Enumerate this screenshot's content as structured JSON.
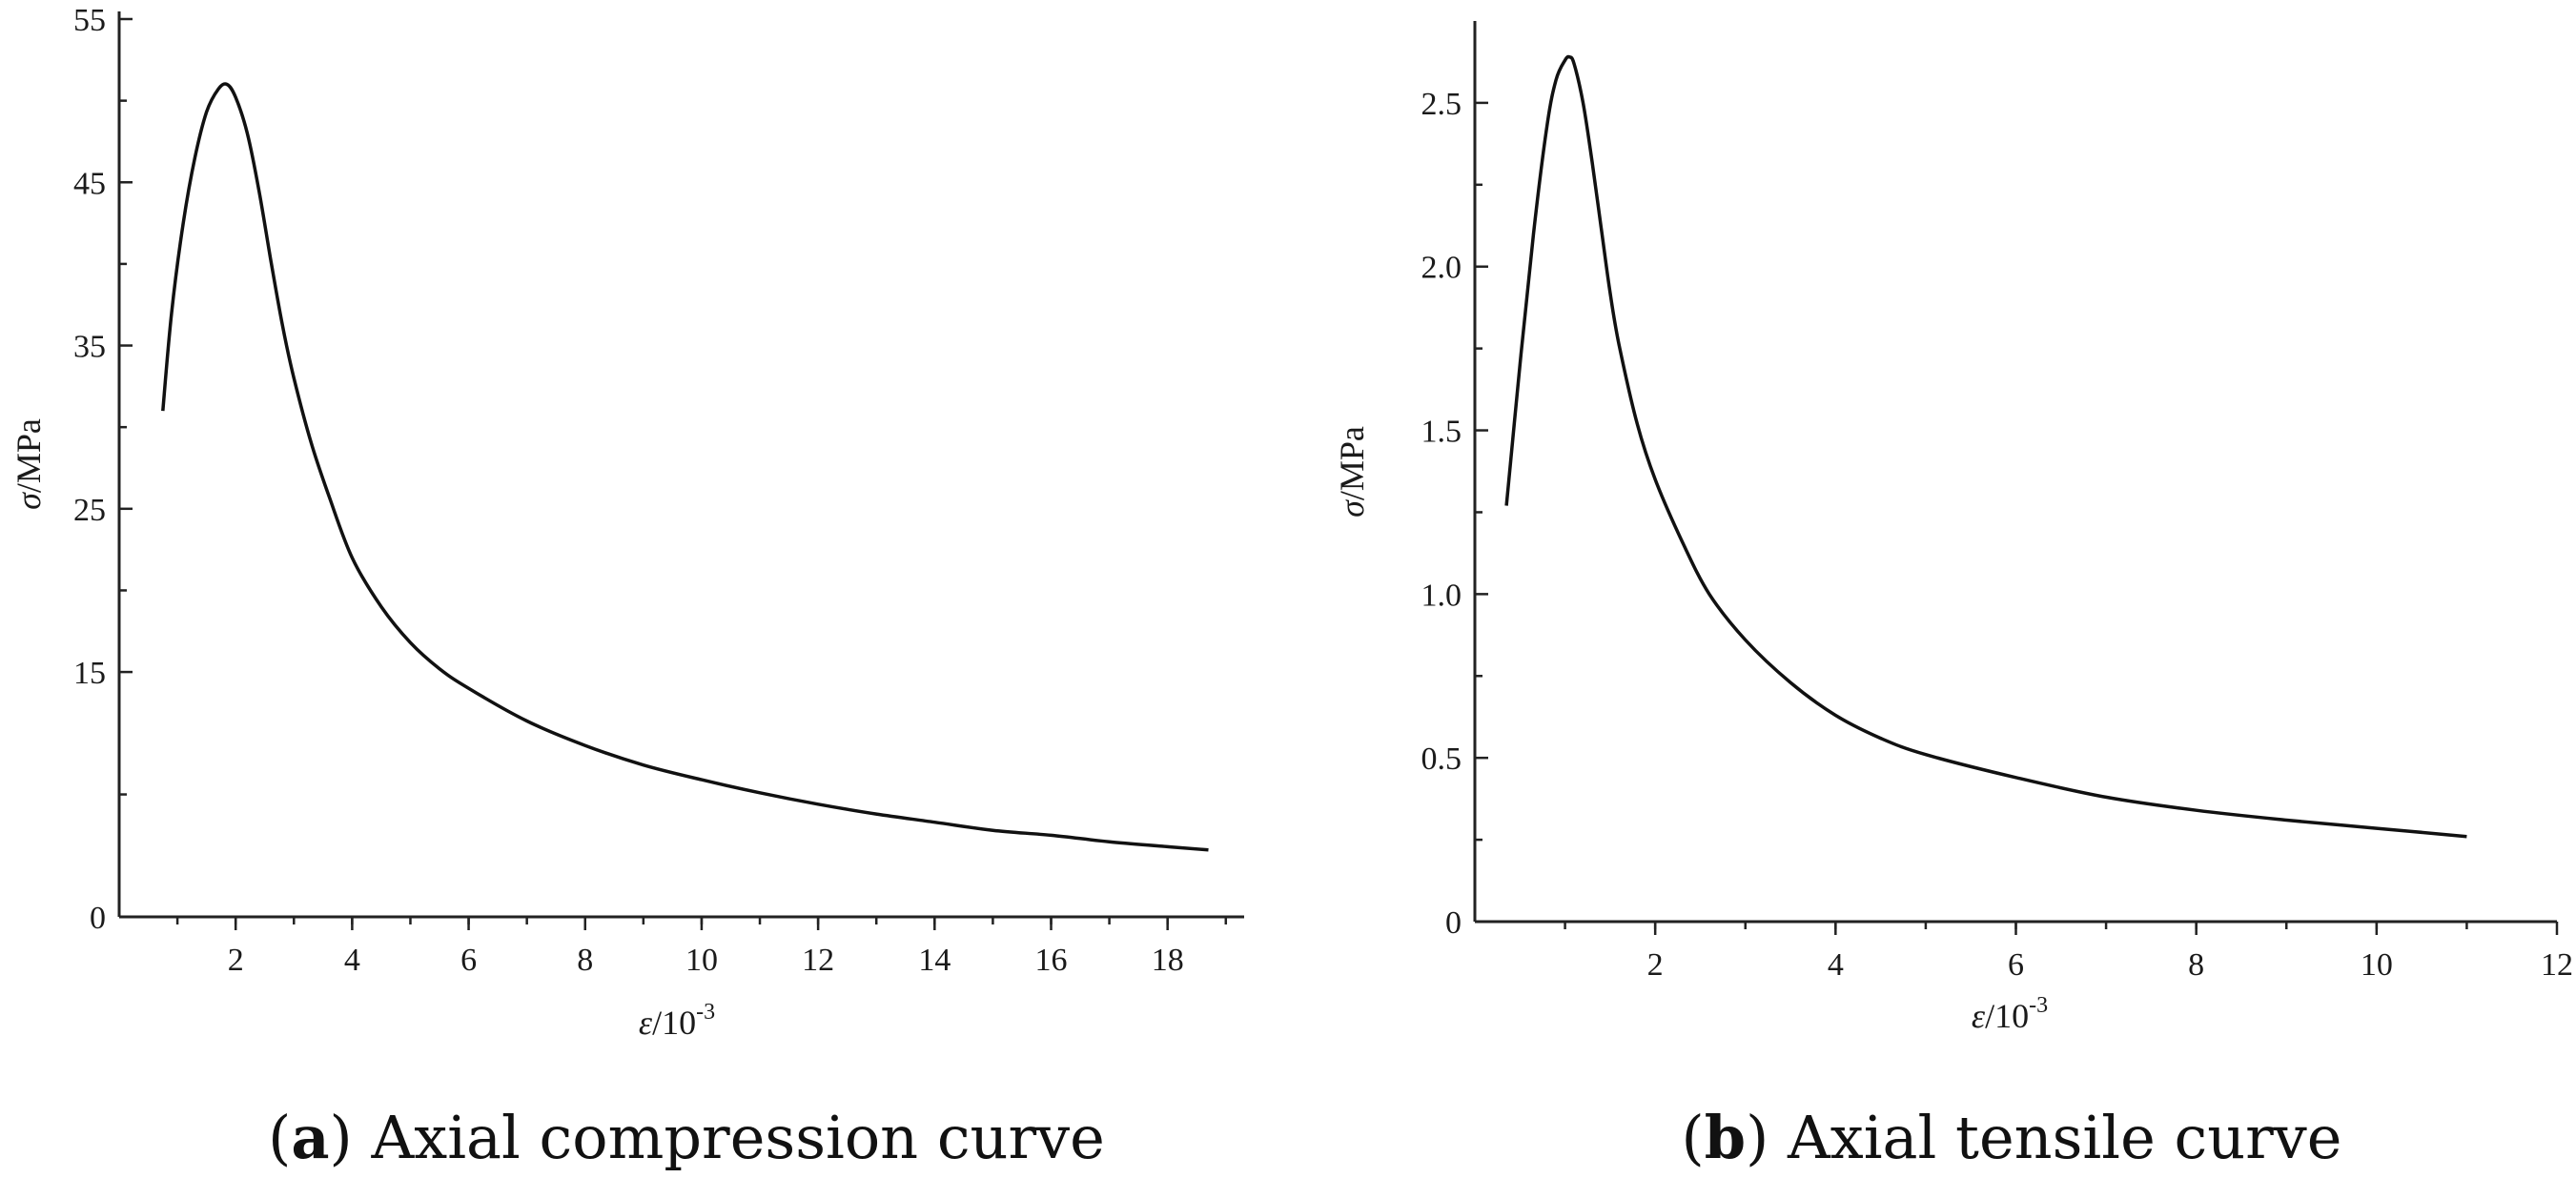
{
  "chart_data": [
    {
      "id": "a",
      "type": "line",
      "caption_letter": "a",
      "caption_text": " Axial compression curve",
      "xlabel_symbol": "ε",
      "xlabel_unit": "/10",
      "xlabel_exp": "-3",
      "ylabel_symbol": "σ",
      "ylabel_unit": "/MPa",
      "xlim": [
        0,
        19.2
      ],
      "ylim": [
        0,
        55
      ],
      "xticks": [
        2,
        4,
        6,
        8,
        10,
        12,
        14,
        16,
        18
      ],
      "yticks": [
        0,
        15,
        25,
        35,
        45,
        55
      ],
      "ytick_labels": [
        "0",
        "15",
        "25",
        "35",
        "45",
        "55"
      ],
      "series": [
        {
          "name": "compression",
          "x": [
            0.75,
            0.9,
            1.1,
            1.3,
            1.5,
            1.7,
            1.85,
            2.0,
            2.2,
            2.4,
            2.6,
            2.8,
            3.0,
            3.3,
            3.6,
            4.0,
            4.5,
            5.0,
            5.5,
            6.0,
            7.0,
            8.0,
            9.0,
            10.0,
            11.0,
            12.0,
            13.0,
            14.0,
            15.0,
            16.0,
            17.0,
            18.0,
            18.7
          ],
          "y": [
            31.0,
            37.0,
            42.5,
            46.5,
            49.3,
            50.7,
            51.0,
            50.2,
            48.0,
            44.5,
            40.3,
            36.3,
            33.0,
            29.0,
            25.8,
            22.0,
            19.0,
            16.8,
            15.2,
            14.0,
            12.0,
            10.5,
            9.3,
            8.4,
            7.6,
            6.9,
            6.3,
            5.8,
            5.3,
            5.0,
            4.6,
            4.3,
            4.1
          ]
        }
      ]
    },
    {
      "id": "b",
      "type": "line",
      "caption_letter": "b",
      "caption_text": " Axial tensile curve",
      "xlabel_symbol": "ε",
      "xlabel_unit": "/10",
      "xlabel_exp": "-3",
      "ylabel_symbol": "σ",
      "ylabel_unit": "/MPa",
      "xlim": [
        0,
        12
      ],
      "ylim": [
        0,
        2.75
      ],
      "xticks": [
        2,
        4,
        6,
        8,
        10,
        12
      ],
      "yticks": [
        0,
        0.5,
        1.0,
        1.5,
        2.0,
        2.5
      ],
      "ytick_labels": [
        "0",
        "0.5",
        "1.0",
        "1.5",
        "2.0",
        "2.5"
      ],
      "series": [
        {
          "name": "tensile",
          "x": [
            0.35,
            0.5,
            0.65,
            0.8,
            0.9,
            1.0,
            1.05,
            1.1,
            1.2,
            1.3,
            1.4,
            1.5,
            1.6,
            1.8,
            2.0,
            2.3,
            2.6,
            3.0,
            3.5,
            4.0,
            4.5,
            5.0,
            6.0,
            7.0,
            8.0,
            9.0,
            10.0,
            11.0
          ],
          "y": [
            1.27,
            1.7,
            2.1,
            2.43,
            2.57,
            2.63,
            2.64,
            2.62,
            2.5,
            2.32,
            2.12,
            1.92,
            1.76,
            1.52,
            1.35,
            1.16,
            1.0,
            0.86,
            0.73,
            0.63,
            0.56,
            0.51,
            0.44,
            0.38,
            0.34,
            0.31,
            0.285,
            0.26
          ]
        }
      ]
    }
  ]
}
